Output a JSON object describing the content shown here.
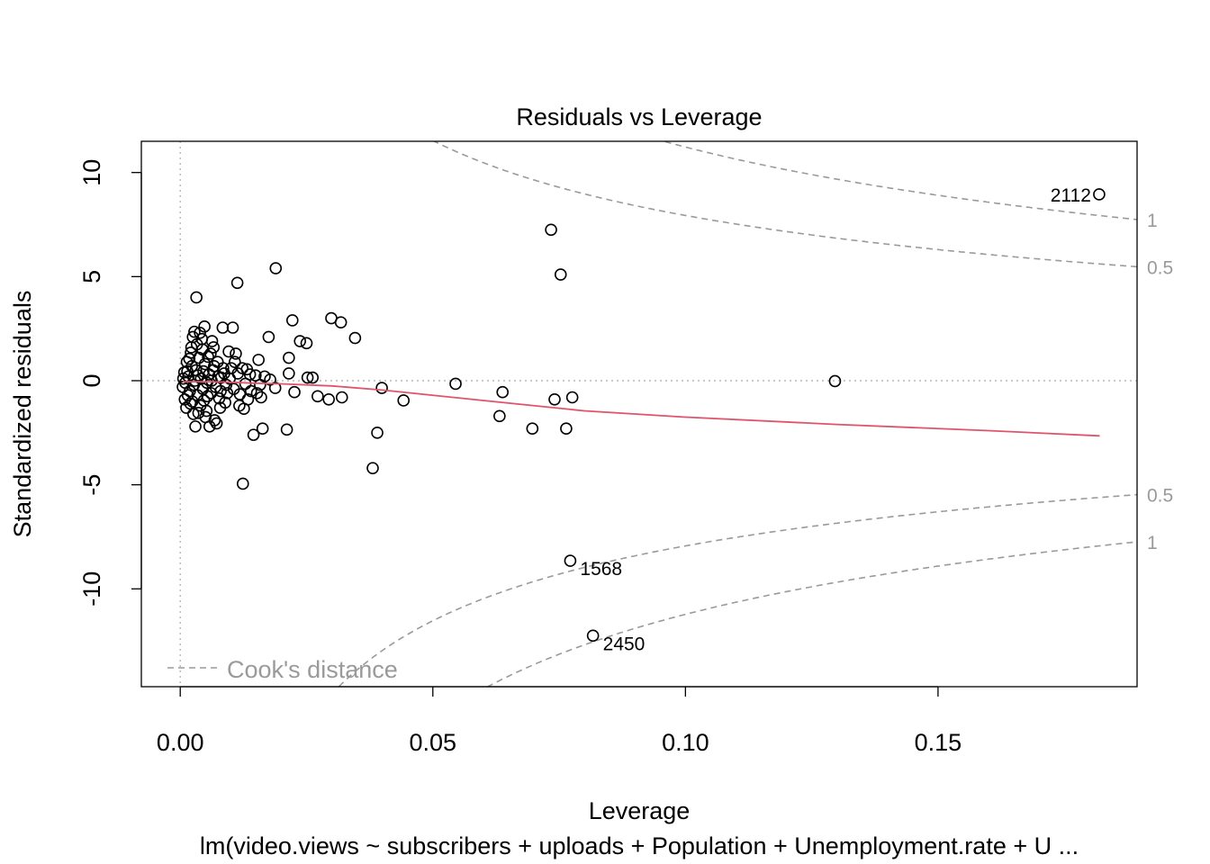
{
  "chart_data": {
    "type": "scatter",
    "title": "Residuals vs Leverage",
    "xlabel": "Leverage",
    "ylabel": "Standardized residuals",
    "subtitle": "lm(video.views ~ subscribers + uploads + Population + Unemployment.rate + U ...",
    "xlim": [
      -0.0077,
      0.1894
    ],
    "ylim": [
      -14.7,
      11.5
    ],
    "xticks": [
      0.0,
      0.05,
      0.1,
      0.15
    ],
    "xtick_labels": [
      "0.00",
      "0.05",
      "0.10",
      "0.15"
    ],
    "yticks": [
      -10,
      -5,
      0,
      5,
      10
    ],
    "ytick_labels": [
      "-10",
      "-5",
      "0",
      "5",
      "10"
    ],
    "grid": false,
    "reference_lines": {
      "x": 0,
      "y": 0,
      "style": "dotted gray"
    },
    "legend": {
      "position": "bottom-left",
      "label": "Cook's distance"
    },
    "cooks_distance_levels": [
      0.5,
      1
    ],
    "cooks_contour_labels_upper": [
      "1",
      "0.5"
    ],
    "cooks_contour_labels_lower": [
      "0.5",
      "1"
    ],
    "smoother": {
      "name": "loess fit",
      "color": "#DF536B",
      "x": [
        0.0005,
        0.003,
        0.006,
        0.01,
        0.015,
        0.02,
        0.03,
        0.04,
        0.06,
        0.08,
        0.1,
        0.13,
        0.16,
        0.182
      ],
      "y": [
        -0.05,
        -0.05,
        -0.05,
        -0.08,
        -0.12,
        -0.15,
        -0.25,
        -0.45,
        -0.95,
        -1.45,
        -1.75,
        -2.1,
        -2.4,
        -2.65
      ]
    },
    "labeled_points": [
      {
        "label": "2112",
        "x": 0.1819,
        "y": 8.95
      },
      {
        "label": "1568",
        "x": 0.0772,
        "y": -8.65
      },
      {
        "label": "2450",
        "x": 0.0817,
        "y": -12.25
      }
    ],
    "points": [
      {
        "x": 0.0734,
        "y": 7.25
      },
      {
        "x": 0.0753,
        "y": 5.1
      },
      {
        "x": 0.1296,
        "y": -0.02
      },
      {
        "x": 0.0189,
        "y": 5.4
      },
      {
        "x": 0.0113,
        "y": 4.7
      },
      {
        "x": 0.0032,
        "y": 4.0
      },
      {
        "x": 0.0299,
        "y": 3.0
      },
      {
        "x": 0.0318,
        "y": 2.8
      },
      {
        "x": 0.0222,
        "y": 2.9
      },
      {
        "x": 0.0346,
        "y": 2.05
      },
      {
        "x": 0.0175,
        "y": 2.1
      },
      {
        "x": 0.0237,
        "y": 1.9
      },
      {
        "x": 0.025,
        "y": 1.8
      },
      {
        "x": 0.0104,
        "y": 2.55
      },
      {
        "x": 0.0084,
        "y": 2.55
      },
      {
        "x": 0.0048,
        "y": 2.6
      },
      {
        "x": 0.0028,
        "y": 2.35
      },
      {
        "x": 0.0215,
        "y": 1.1
      },
      {
        "x": 0.0155,
        "y": 1.0
      },
      {
        "x": 0.0215,
        "y": 0.35
      },
      {
        "x": 0.0252,
        "y": 0.15
      },
      {
        "x": 0.0262,
        "y": 0.15
      },
      {
        "x": 0.0178,
        "y": 0.05
      },
      {
        "x": 0.0399,
        "y": -0.35
      },
      {
        "x": 0.0545,
        "y": -0.15
      },
      {
        "x": 0.0638,
        "y": -0.55
      },
      {
        "x": 0.0776,
        "y": -0.8
      },
      {
        "x": 0.0741,
        "y": -0.9
      },
      {
        "x": 0.0442,
        "y": -0.95
      },
      {
        "x": 0.032,
        "y": -0.8
      },
      {
        "x": 0.0294,
        "y": -0.9
      },
      {
        "x": 0.0272,
        "y": -0.75
      },
      {
        "x": 0.0226,
        "y": -0.55
      },
      {
        "x": 0.0632,
        "y": -1.7
      },
      {
        "x": 0.0697,
        "y": -2.3
      },
      {
        "x": 0.0764,
        "y": -2.3
      },
      {
        "x": 0.039,
        "y": -2.5
      },
      {
        "x": 0.0381,
        "y": -4.2
      },
      {
        "x": 0.0124,
        "y": -4.95
      },
      {
        "x": 0.0211,
        "y": -2.35
      },
      {
        "x": 0.0163,
        "y": -2.3
      },
      {
        "x": 0.0145,
        "y": -2.6
      },
      {
        "x": 0.0126,
        "y": -1.35
      },
      {
        "x": 0.0117,
        "y": -1.2
      },
      {
        "x": 0.016,
        "y": -0.8
      },
      {
        "x": 0.0152,
        "y": -0.6
      },
      {
        "x": 0.0188,
        "y": -0.35
      },
      {
        "x": 0.0134,
        "y": -0.9
      },
      {
        "x": 0.0096,
        "y": 1.4
      },
      {
        "x": 0.011,
        "y": 1.3
      },
      {
        "x": 0.0123,
        "y": 0.6
      },
      {
        "x": 0.0138,
        "y": 0.3
      },
      {
        "x": 0.0089,
        "y": -1.05
      },
      {
        "x": 0.0068,
        "y": -1.9
      },
      {
        "x": 0.0072,
        "y": -2.05
      },
      {
        "x": 0.0058,
        "y": -2.2
      },
      {
        "x": 0.003,
        "y": -2.2
      },
      {
        "x": 0.0026,
        "y": -1.6
      },
      {
        "x": 0.0052,
        "y": -1.45
      },
      {
        "x": 0.004,
        "y": -1.2
      },
      {
        "x": 0.0063,
        "y": 1.9
      },
      {
        "x": 0.0066,
        "y": 1.6
      },
      {
        "x": 0.0044,
        "y": 1.5
      },
      {
        "x": 0.0021,
        "y": 1.35
      },
      {
        "x": 0.0013,
        "y": 0.9
      },
      {
        "x": 0.0008,
        "y": 0.4
      },
      {
        "x": 0.0005,
        "y": -0.3
      },
      {
        "x": 0.0009,
        "y": -0.9
      },
      {
        "x": 0.0016,
        "y": 0.2
      },
      {
        "x": 0.0019,
        "y": -0.5
      },
      {
        "x": 0.0023,
        "y": 0.7
      },
      {
        "x": 0.0027,
        "y": -0.2
      },
      {
        "x": 0.0031,
        "y": 0.5
      },
      {
        "x": 0.0034,
        "y": -0.7
      },
      {
        "x": 0.0037,
        "y": 1.1
      },
      {
        "x": 0.0041,
        "y": 0.1
      },
      {
        "x": 0.0045,
        "y": -0.4
      },
      {
        "x": 0.0049,
        "y": 0.8
      },
      {
        "x": 0.0053,
        "y": -0.1
      },
      {
        "x": 0.0057,
        "y": 0.3
      },
      {
        "x": 0.0061,
        "y": -0.6
      },
      {
        "x": 0.0065,
        "y": 0.5
      },
      {
        "x": 0.007,
        "y": -0.3
      },
      {
        "x": 0.0075,
        "y": 0.2
      },
      {
        "x": 0.008,
        "y": -0.5
      },
      {
        "x": 0.0085,
        "y": 0.6
      },
      {
        "x": 0.0091,
        "y": -0.2
      },
      {
        "x": 0.0098,
        "y": 0.1
      },
      {
        "x": 0.0106,
        "y": -0.4
      },
      {
        "x": 0.0114,
        "y": 0.35
      },
      {
        "x": 0.0129,
        "y": -0.15
      },
      {
        "x": 0.014,
        "y": -0.5
      },
      {
        "x": 0.0149,
        "y": 0.25
      },
      {
        "x": 0.0158,
        "y": -0.2
      },
      {
        "x": 0.0167,
        "y": 0.2
      },
      {
        "x": 0.0012,
        "y": -1.3
      },
      {
        "x": 0.0024,
        "y": -1.0
      },
      {
        "x": 0.0036,
        "y": -1.55
      },
      {
        "x": 0.0047,
        "y": -0.95
      },
      {
        "x": 0.0055,
        "y": 1.15
      },
      {
        "x": 0.0033,
        "y": 1.75
      },
      {
        "x": 0.0018,
        "y": 1.05
      },
      {
        "x": 0.0043,
        "y": 2.0
      },
      {
        "x": 0.006,
        "y": 1.3
      },
      {
        "x": 0.0074,
        "y": 0.9
      },
      {
        "x": 0.0079,
        "y": -1.3
      },
      {
        "x": 0.005,
        "y": -1.75
      },
      {
        "x": 0.0025,
        "y": 2.1
      },
      {
        "x": 0.0039,
        "y": 2.3
      },
      {
        "x": 0.0015,
        "y": -0.7
      },
      {
        "x": 0.0029,
        "y": 0.0
      },
      {
        "x": 0.0046,
        "y": 0.45
      },
      {
        "x": 0.0062,
        "y": 0.0
      },
      {
        "x": 0.0081,
        "y": 0.15
      },
      {
        "x": 0.0101,
        "y": 0.6
      },
      {
        "x": 0.0118,
        "y": -0.65
      },
      {
        "x": 0.0132,
        "y": 0.55
      },
      {
        "x": 0.0006,
        "y": 0.1
      },
      {
        "x": 0.001,
        "y": -0.1
      },
      {
        "x": 0.0014,
        "y": 0.45
      },
      {
        "x": 0.002,
        "y": -1.1
      },
      {
        "x": 0.0022,
        "y": 1.6
      },
      {
        "x": 0.0035,
        "y": 0.25
      },
      {
        "x": 0.0054,
        "y": -0.75
      },
      {
        "x": 0.0067,
        "y": 0.7
      },
      {
        "x": 0.0077,
        "y": -0.85
      },
      {
        "x": 0.0087,
        "y": 0.35
      },
      {
        "x": 0.0093,
        "y": -0.6
      },
      {
        "x": 0.0108,
        "y": 0.9
      }
    ]
  }
}
